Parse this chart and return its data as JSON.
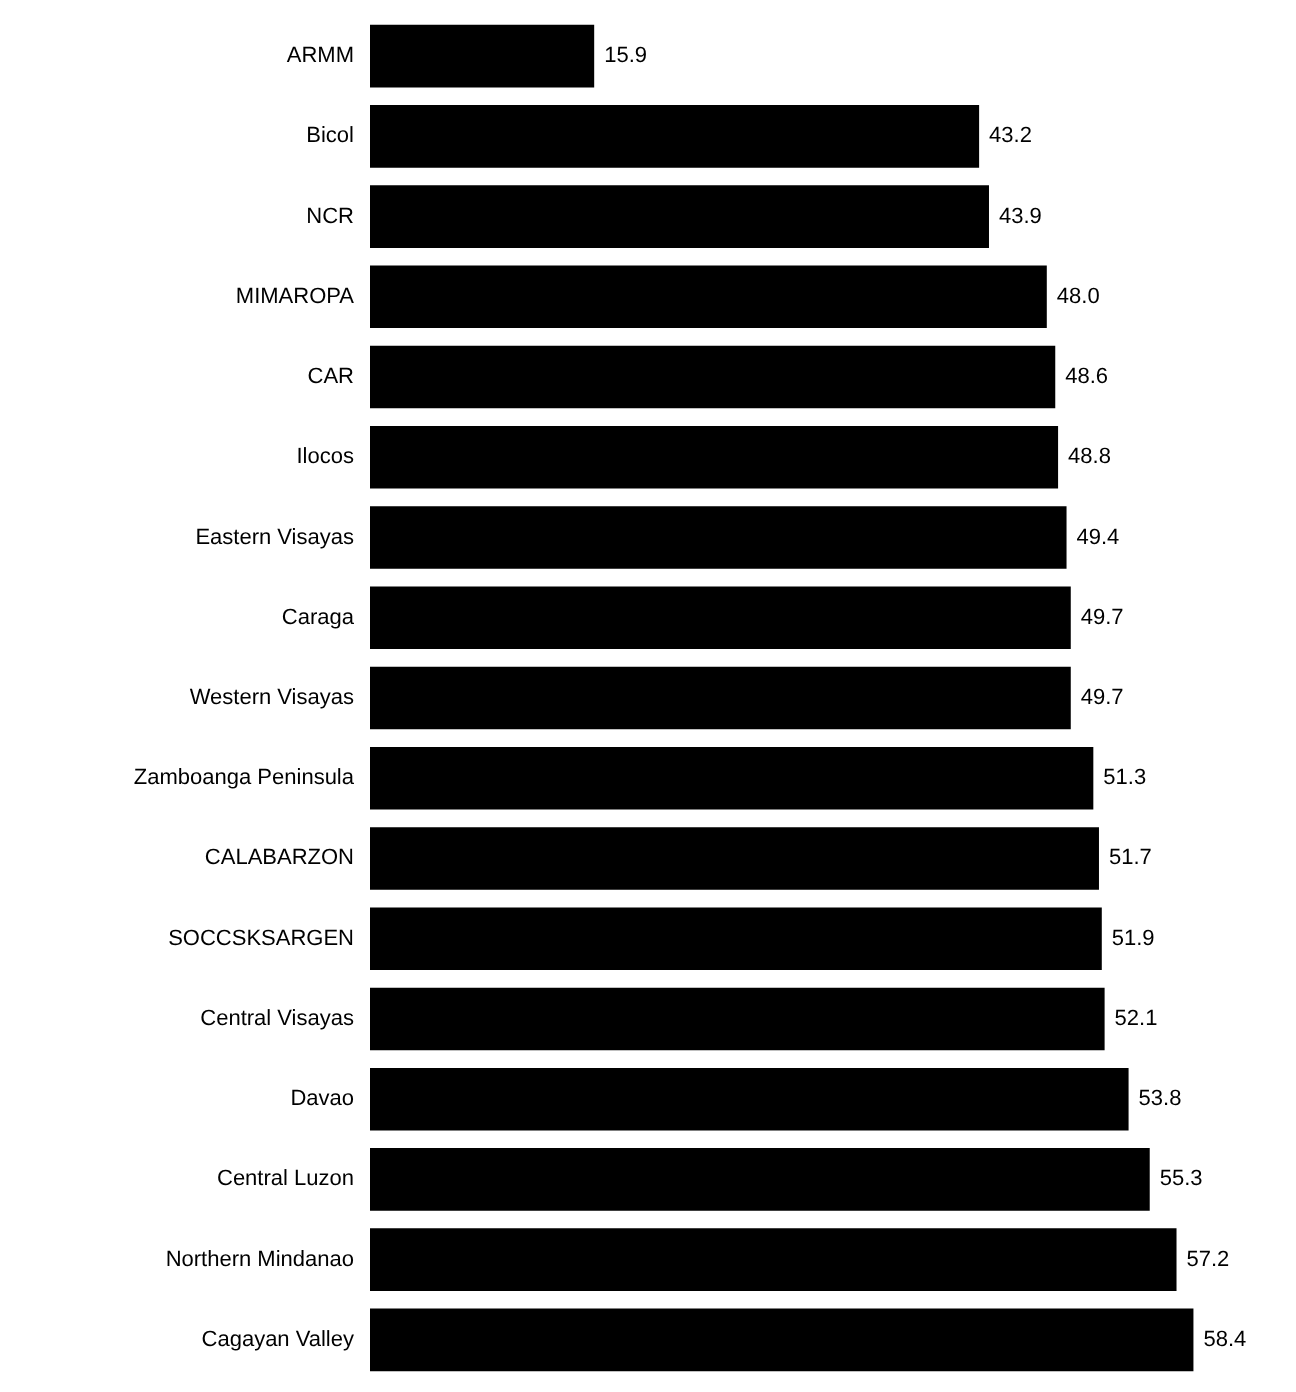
{
  "chart_data": {
    "type": "bar",
    "orientation": "horizontal",
    "categories": [
      "ARMM",
      "Bicol",
      "NCR",
      "MIMAROPA",
      "CAR",
      "Ilocos",
      "Eastern Visayas",
      "Caraga",
      "Western Visayas",
      "Zamboanga Peninsula",
      "CALABARZON",
      "SOCCSKSARGEN",
      "Central Visayas",
      "Davao",
      "Central Luzon",
      "Northern Mindanao",
      "Cagayan Valley"
    ],
    "values": [
      15.9,
      43.2,
      43.9,
      48.0,
      48.6,
      48.8,
      49.4,
      49.7,
      49.7,
      51.3,
      51.7,
      51.9,
      52.1,
      53.8,
      55.3,
      57.2,
      58.4
    ],
    "value_labels": [
      "15.9",
      "43.2",
      "43.9",
      "48.0",
      "48.6",
      "48.8",
      "49.4",
      "49.7",
      "49.7",
      "51.3",
      "51.7",
      "51.9",
      "52.1",
      "53.8",
      "55.3",
      "57.2",
      "58.4"
    ],
    "color": "#000000"
  }
}
